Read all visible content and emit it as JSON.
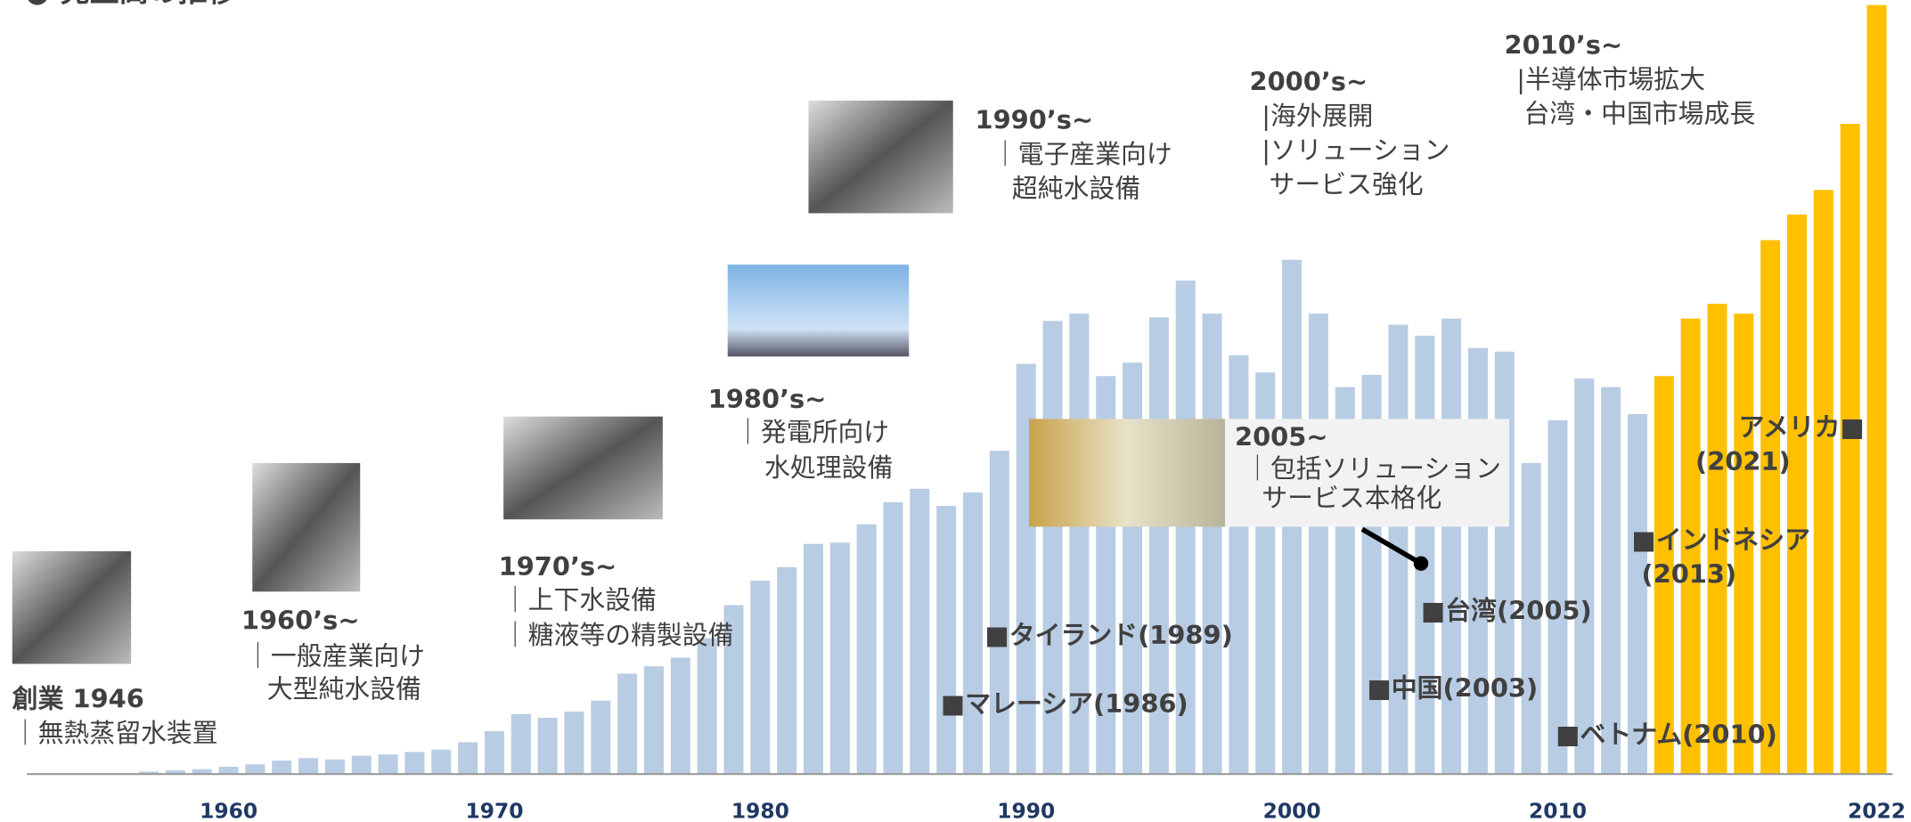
{
  "chart_data": {
    "type": "bar",
    "title": "● 売上高の推移",
    "categories": [
      null,
      null,
      null,
      "1960",
      null,
      null,
      null,
      null,
      null,
      null,
      null,
      null,
      null,
      "1970",
      null,
      null,
      null,
      null,
      null,
      null,
      null,
      null,
      null,
      "1980",
      null,
      null,
      null,
      null,
      null,
      null,
      null,
      null,
      null,
      "1990",
      null,
      null,
      null,
      null,
      null,
      null,
      null,
      null,
      null,
      "2000",
      null,
      null,
      null,
      null,
      null,
      null,
      null,
      null,
      null,
      "2010",
      null,
      null,
      null,
      null,
      null,
      null,
      null,
      null,
      null,
      null,
      null,
      "2022"
    ],
    "series": [
      {
        "color": "#b8cce4",
        "values": [
          2,
          3,
          4,
          6,
          8,
          11,
          13,
          12,
          15,
          16,
          18,
          20,
          26,
          35,
          49,
          46,
          51,
          60,
          82,
          88,
          95,
          111,
          138,
          158,
          169,
          188,
          189,
          204,
          222,
          233,
          219,
          230,
          264,
          335,
          370,
          376,
          325,
          336,
          373,
          403,
          376,
          342,
          328,
          420,
          376,
          316,
          326,
          367,
          358,
          372,
          348,
          345,
          254,
          289,
          323,
          316,
          294,
          null,
          null,
          null,
          null,
          null,
          null,
          null,
          null,
          null
        ]
      },
      {
        "color": "#ffc000",
        "values": [
          null,
          null,
          null,
          null,
          null,
          null,
          null,
          null,
          null,
          null,
          null,
          null,
          null,
          null,
          null,
          null,
          null,
          null,
          null,
          null,
          null,
          null,
          null,
          null,
          null,
          null,
          null,
          null,
          null,
          null,
          null,
          null,
          null,
          null,
          null,
          null,
          null,
          null,
          null,
          null,
          null,
          null,
          null,
          null,
          null,
          null,
          null,
          null,
          null,
          null,
          null,
          null,
          null,
          null,
          null,
          null,
          null,
          325,
          372,
          384,
          376,
          436,
          457,
          477,
          531,
          628
        ]
      }
    ],
    "annotations": [
      "創業 1946",
      "｜無熱蒸留水装置",
      "1960’s~",
      "｜一般産業向け",
      "大型純水設備",
      "1970’s~",
      "｜上下水設備",
      "｜糖液等の精製設備",
      "1980’s~",
      "｜発電所向け",
      "水処理設備",
      "1990’s~",
      "｜電子産業向け",
      "超純水設備",
      "2000’s~",
      "|海外展開",
      "|ソリューション",
      "サービス強化",
      "2010’s~",
      "|半導体市場拡大",
      "台湾・中国市場成長",
      "2005~",
      "｜包括ソリューション",
      "サービス本格化",
      "■タイランド(1989)",
      "■マレーシア(1986)",
      "■中国(2003)",
      "■台湾(2005)",
      "■ベトナム(2010)",
      "■インドネシア",
      "(2013)",
      "アメリカ■",
      "(2021)"
    ]
  }
}
